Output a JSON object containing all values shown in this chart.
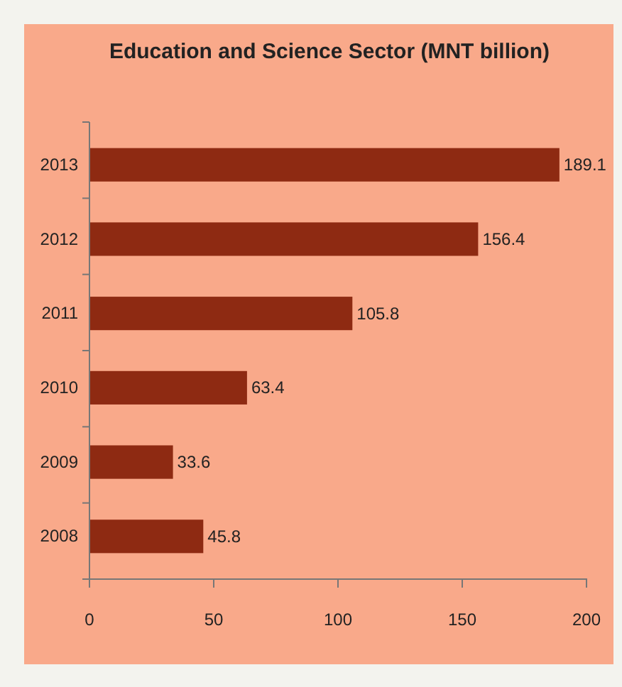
{
  "chart_data": {
    "type": "bar",
    "orientation": "horizontal",
    "title": "Education and Science Sector (MNT billion)",
    "categories": [
      "2013",
      "2012",
      "2011",
      "2010",
      "2009",
      "2008"
    ],
    "values": [
      189.1,
      156.4,
      105.8,
      63.4,
      33.6,
      45.8
    ],
    "color": "#8e2a12",
    "xlim": [
      0,
      200
    ],
    "xticks": [
      0,
      50,
      100,
      150,
      200
    ],
    "data_labels": true
  }
}
